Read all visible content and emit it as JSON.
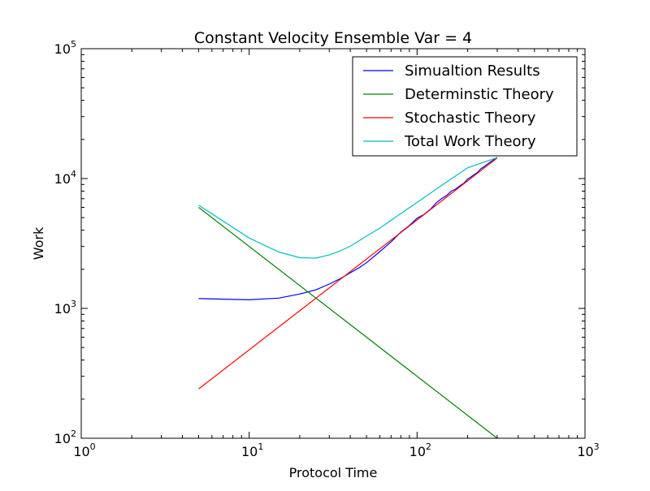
{
  "chart_data": {
    "type": "line",
    "title": "Constant Velocity Ensemble Var = 4",
    "xlabel": "Protocol Time",
    "ylabel": "Work",
    "xscale": "log",
    "yscale": "log",
    "xlim": [
      1,
      1000
    ],
    "ylim": [
      100,
      100000
    ],
    "x_ticks": [
      {
        "value": 1,
        "base": "10",
        "exp": "0"
      },
      {
        "value": 10,
        "base": "10",
        "exp": "1"
      },
      {
        "value": 100,
        "base": "10",
        "exp": "2"
      },
      {
        "value": 1000,
        "base": "10",
        "exp": "3"
      }
    ],
    "y_ticks": [
      {
        "value": 100,
        "base": "10",
        "exp": "2"
      },
      {
        "value": 1000,
        "base": "10",
        "exp": "3"
      },
      {
        "value": 10000,
        "base": "10",
        "exp": "4"
      },
      {
        "value": 100000,
        "base": "10",
        "exp": "5"
      }
    ],
    "grid": false,
    "legend_position": "top-right",
    "series": [
      {
        "name": "Simualtion Results",
        "color": "#0000ff",
        "x": [
          5,
          10,
          15,
          20,
          25,
          30,
          35,
          40,
          45,
          50,
          60,
          70,
          80,
          90,
          100,
          110,
          120,
          130,
          140,
          150,
          160,
          170,
          180,
          190,
          200,
          210,
          220,
          230,
          240,
          250,
          260,
          270,
          280,
          290,
          300
        ],
        "y": [
          1190,
          1165,
          1200,
          1290,
          1390,
          1540,
          1700,
          1880,
          2050,
          2250,
          2740,
          3250,
          3870,
          4350,
          4950,
          5300,
          5800,
          6500,
          7000,
          7400,
          8000,
          8300,
          8800,
          9200,
          9900,
          10300,
          10800,
          11200,
          11900,
          12300,
          12800,
          13300,
          13700,
          14100,
          14600
        ]
      },
      {
        "name": "Determinstic Theory",
        "color": "#008000",
        "x": [
          5,
          300
        ],
        "y": [
          6000,
          100
        ]
      },
      {
        "name": "Stochastic Theory",
        "color": "#ff0000",
        "x": [
          5,
          300
        ],
        "y": [
          240,
          14400
        ]
      },
      {
        "name": "Total Work Theory",
        "color": "#00bfbf",
        "x": [
          5,
          10,
          15,
          20,
          25,
          30,
          35,
          40,
          50,
          60,
          80,
          100,
          150,
          200,
          300
        ],
        "y": [
          6240,
          3480,
          2720,
          2460,
          2440,
          2580,
          2780,
          3010,
          3600,
          4150,
          5375,
          6550,
          9400,
          12100,
          14500
        ]
      }
    ]
  }
}
